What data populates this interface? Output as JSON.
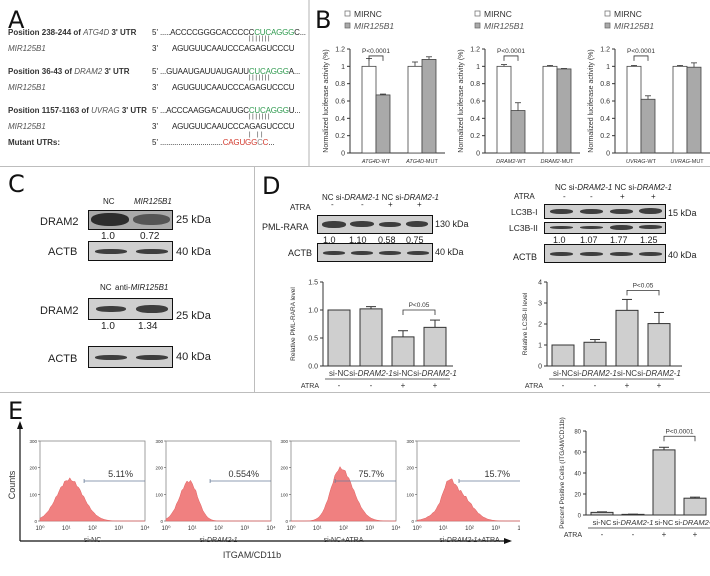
{
  "panels": {
    "A": {
      "letter": "A",
      "rows": [
        {
          "label_pre": "Position 238-244 of ",
          "gene": "ATG4D",
          "label_post": " 3' UTR",
          "end": "5'",
          "seq_pre": ".....ACCCCGGGCACCCCC",
          "seq_site": "CUCAGGG",
          "seq_post": "C...",
          "bars": "|||||||"
        },
        {
          "label_mirna": "MIR125B1",
          "end": "3'",
          "seq": "AGUGUUCAAUCCCAGAGUCCCU"
        },
        {
          "label_pre": "Position 36-43 of ",
          "gene": "DRAM2",
          "label_post": " 3' UTR",
          "end": "5'",
          "seq_pre": "...GUAAUGAUUAUGAUU",
          "seq_site": "CUCAGGG",
          "seq_post": "A...",
          "bars": "|||||||"
        },
        {
          "label_mirna": "MIR125B1",
          "end": "3'",
          "seq": "AGUGUUCAAUCCCAGAGUCCCU"
        },
        {
          "label_pre": "Position 1157-1163 of ",
          "gene": "UVRAG",
          "label_post": " 3' UTR",
          "end": "5'",
          "seq_pre": "...ACCCAAGGACAUUGC",
          "seq_site": "CUCAGGG",
          "seq_post": "U...",
          "bars": "|||||||"
        },
        {
          "label_mirna": "MIR125B1",
          "end": "3'",
          "seq": "AGUGUUCAAUCCCAGAGUCCCU"
        },
        {
          "label_mutant": "Mutant UTRs:",
          "end": "5'",
          "seq_pre": "...............................",
          "seq_mut": [
            "C",
            "A",
            "G",
            "U",
            "G",
            "G",
            "C",
            "C"
          ],
          "seq_post": "...",
          "bars": "|  ||"
        }
      ]
    },
    "B": {
      "letter": "B"
    },
    "C": {
      "letter": "C",
      "blot1": {
        "lanes": [
          "NC",
          "MIR125B1"
        ],
        "protein": "DRAM2",
        "marker": "25 kDa",
        "values": [
          "1.0",
          "0.72"
        ],
        "loading": "ACTB",
        "loading_marker": "40 kDa"
      },
      "blot2": {
        "lanes": [
          "NC",
          "anti-",
          "MIR125B1"
        ],
        "protein": "DRAM2",
        "marker": "25 kDa",
        "values": [
          "1.0",
          "1.34"
        ],
        "loading": "ACTB",
        "loading_marker": "40 kDa"
      }
    },
    "D": {
      "letter": "D",
      "left_blot": {
        "lanes": [
          "NC",
          "si-",
          "DRAM2-1",
          "NC",
          "si-",
          "DRAM2-1"
        ],
        "atra_label": "ATRA",
        "atra": [
          "-",
          "-",
          "+",
          "+"
        ],
        "protein": "PML-RARA",
        "marker": "130 kDa",
        "values": [
          "1.0",
          "1.10",
          "0.58",
          "0.75"
        ],
        "loading": "ACTB",
        "loading_marker": "40 kDa"
      },
      "right_blot": {
        "atra_label": "ATRA",
        "atra": [
          "-",
          "-",
          "+",
          "+"
        ],
        "protein1": "LC3B-I",
        "marker1": "15 kDa",
        "protein2": "LC3B-II",
        "values": [
          "1.0",
          "1.07",
          "1.77",
          "1.25"
        ],
        "loading": "ACTB",
        "loading_marker": "40 kDa"
      }
    },
    "E": {
      "letter": "E",
      "y_axis": "Counts",
      "x_axis": "ITGAM/CD11b",
      "histograms": [
        {
          "label": "si-NC",
          "label_it": "",
          "label_post": "",
          "percent": "5.11%"
        },
        {
          "label": "si-",
          "label_it": "DRAM2-1",
          "label_post": "",
          "percent": "0.554%"
        },
        {
          "label": "si-NC+ATRA",
          "label_it": "",
          "label_post": "",
          "percent": "75.7%"
        },
        {
          "label": "si-",
          "label_it": "DRAM2-1",
          "label_post": "+ATRA",
          "percent": "15.7%"
        }
      ],
      "hist_yticks": [
        "0",
        "100",
        "200",
        "300"
      ],
      "hist_xticks": [
        "10⁰",
        "10¹",
        "10²",
        "10³",
        "10⁴"
      ]
    }
  },
  "chart_data": [
    {
      "id": "B1",
      "type": "bar",
      "legend": [
        "MIRNC",
        "MIR125B1"
      ],
      "legend_position": "top-left",
      "ylabel": "Normalized luciferase activity (%)",
      "ylim": [
        0,
        1.2
      ],
      "yticks": [
        "0",
        "0.2",
        "0.4",
        "0.6",
        "0.8",
        "1",
        "1.2"
      ],
      "categories": [
        {
          "it": "ATG4D",
          "post": "-WT"
        },
        {
          "it": "ATG4D",
          "post": "-MUT"
        }
      ],
      "series": [
        {
          "name": "MIRNC",
          "values": [
            1.0,
            1.0
          ],
          "errors": [
            0.09,
            0.05
          ]
        },
        {
          "name": "MIR125B1",
          "values": [
            0.67,
            1.08
          ],
          "errors": [
            0.01,
            0.03
          ]
        }
      ],
      "annotation": "P<0.0001",
      "annotation_pair": 0
    },
    {
      "id": "B2",
      "type": "bar",
      "legend": [
        "MIRNC",
        "MIR125B1"
      ],
      "legend_position": "top-left",
      "ylabel": "Normalized luciferase activity (%)",
      "ylim": [
        0,
        1.2
      ],
      "yticks": [
        "0",
        "0.2",
        "0.4",
        "0.6",
        "0.8",
        "1",
        "1.2"
      ],
      "categories": [
        {
          "it": "DRAM2",
          "post": "-WT"
        },
        {
          "it": "DRAM2",
          "post": "-MUT"
        }
      ],
      "series": [
        {
          "name": "MIRNC",
          "values": [
            1.0,
            1.0
          ],
          "errors": [
            0.02,
            0.01
          ]
        },
        {
          "name": "MIR125B1",
          "values": [
            0.49,
            0.97
          ],
          "errors": [
            0.09,
            0.005
          ]
        }
      ],
      "annotation": "P<0.0001",
      "annotation_pair": 0
    },
    {
      "id": "B3",
      "type": "bar",
      "legend": [
        "MIRNC",
        "MIR125B1"
      ],
      "legend_position": "top-left",
      "ylabel": "Normalized luciferase activity (%)",
      "ylim": [
        0,
        1.2
      ],
      "yticks": [
        "0",
        "0.2",
        "0.4",
        "0.6",
        "0.8",
        "1",
        "1.2"
      ],
      "categories": [
        {
          "it": "UVRAG",
          "post": "-WT"
        },
        {
          "it": "UVRAG",
          "post": "-MUT"
        }
      ],
      "series": [
        {
          "name": "MIRNC",
          "values": [
            1.0,
            1.0
          ],
          "errors": [
            0.01,
            0.01
          ]
        },
        {
          "name": "MIR125B1",
          "values": [
            0.62,
            0.99
          ],
          "errors": [
            0.04,
            0.05
          ]
        }
      ],
      "annotation": "P<0.0001",
      "annotation_pair": 0
    },
    {
      "id": "D1",
      "type": "bar",
      "ylabel": "Relative PML-RARA level",
      "ylim": [
        0,
        1.5
      ],
      "yticks": [
        "0.0",
        "0.5",
        "1.0",
        "1.5"
      ],
      "categories": [
        {
          "pre": "si-NC",
          "it": ""
        },
        {
          "pre": "si-",
          "it": "DRAM2-1"
        },
        {
          "pre": "si-NC",
          "it": ""
        },
        {
          "pre": "si-",
          "it": "DRAM2-1"
        }
      ],
      "atra_label": "ATRA",
      "atra": [
        "-",
        "-",
        "+",
        "+"
      ],
      "values": [
        1.0,
        1.02,
        0.52,
        0.69
      ],
      "errors": [
        0,
        0.04,
        0.11,
        0.13
      ],
      "annotation": "P<0.05",
      "annotation_bars": [
        2,
        3
      ]
    },
    {
      "id": "D2",
      "type": "bar",
      "ylabel": "Relative LC3B-II level",
      "ylim": [
        0,
        4
      ],
      "yticks": [
        "0",
        "1",
        "2",
        "3",
        "4"
      ],
      "categories": [
        {
          "pre": "si-NC",
          "it": ""
        },
        {
          "pre": "si-",
          "it": "DRAM2-1"
        },
        {
          "pre": "si-NC",
          "it": ""
        },
        {
          "pre": "si-",
          "it": "DRAM2-1"
        }
      ],
      "atra_label": "ATRA",
      "atra": [
        "-",
        "-",
        "+",
        "+"
      ],
      "values": [
        1.0,
        1.13,
        2.65,
        2.02
      ],
      "errors": [
        0,
        0.13,
        0.52,
        0.53
      ],
      "annotation": "P<0.05",
      "annotation_bars": [
        2,
        3
      ]
    },
    {
      "id": "E1",
      "type": "bar",
      "ylabel": "Percent Positive Cells (ITGAM/CD11b)",
      "ylim": [
        0,
        80
      ],
      "yticks": [
        "0",
        "20",
        "40",
        "60",
        "80"
      ],
      "categories": [
        {
          "pre": "si-NC",
          "it": ""
        },
        {
          "pre": "si-",
          "it": "DRAM2-1"
        },
        {
          "pre": "si-NC",
          "it": ""
        },
        {
          "pre": "si-",
          "it": "DRAM2-1"
        }
      ],
      "atra_label": "ATRA",
      "atra": [
        "-",
        "-",
        "+",
        "+"
      ],
      "values": [
        2.5,
        0.6,
        62,
        16
      ],
      "errors": [
        0.5,
        0.2,
        2.5,
        1.0
      ],
      "annotation": "P<0.0001",
      "annotation_bars": [
        2,
        3
      ]
    }
  ],
  "colors": {
    "bar_gray": "#cfcfcf",
    "bar_dark": "#a9a9a9",
    "histogram": "#f08080",
    "site_green": "#2e9a4e",
    "mutant_red": "#d23a2e",
    "separator": "#bdbdbd"
  }
}
